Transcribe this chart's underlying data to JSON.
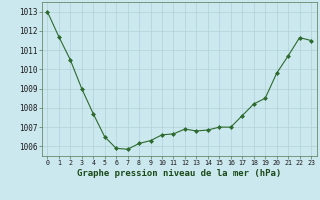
{
  "x": [
    0,
    1,
    2,
    3,
    4,
    5,
    6,
    7,
    8,
    9,
    10,
    11,
    12,
    13,
    14,
    15,
    16,
    17,
    18,
    19,
    20,
    21,
    22,
    23
  ],
  "y": [
    1013.0,
    1011.7,
    1010.5,
    1009.0,
    1007.7,
    1006.5,
    1005.9,
    1005.85,
    1006.15,
    1006.3,
    1006.6,
    1006.65,
    1006.9,
    1006.8,
    1006.85,
    1007.0,
    1007.0,
    1007.6,
    1008.2,
    1008.5,
    1009.8,
    1010.7,
    1011.65,
    1011.5
  ],
  "line_color": "#2d6a2d",
  "marker": "D",
  "marker_size": 2.0,
  "bg_color": "#cce8ef",
  "grid_color": "#b0d0d8",
  "xlabel": "Graphe pression niveau de la mer (hPa)",
  "xlabel_fontsize": 6.5,
  "ylabel_ticks": [
    1006,
    1007,
    1008,
    1009,
    1010,
    1011,
    1012,
    1013
  ],
  "ylim": [
    1005.5,
    1013.5
  ],
  "xlim": [
    -0.5,
    23.5
  ],
  "ytick_fontsize": 5.5,
  "xtick_fontsize": 4.8
}
